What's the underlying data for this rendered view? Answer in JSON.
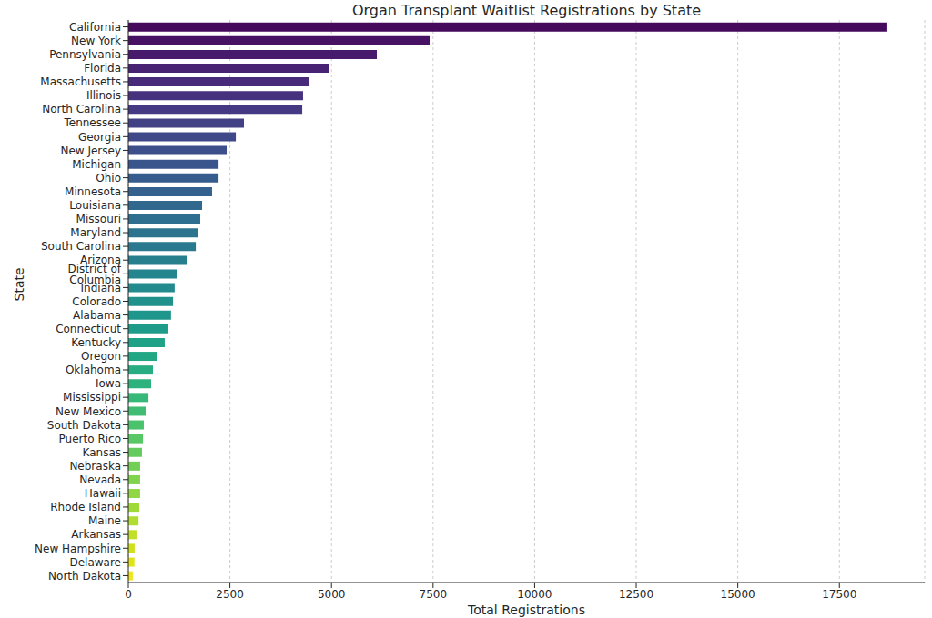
{
  "chart_data": {
    "type": "bar",
    "orientation": "horizontal",
    "title": "Organ Transplant Waitlist Registrations by State",
    "x_label": "Total Registrations",
    "y_label": "State",
    "categories": [
      "California",
      "New York",
      "Pennsylvania",
      "Florida",
      "Massachusetts",
      "Illinois",
      "North Carolina",
      "Tennessee",
      "Georgia",
      "New Jersey",
      "Michigan",
      "Ohio",
      "Minnesota",
      "Louisiana",
      "Missouri",
      "Maryland",
      "South Carolina",
      "Arizona",
      "District of Columbia",
      "Indiana",
      "Colorado",
      "Alabama",
      "Connecticut",
      "Kentucky",
      "Oregon",
      "Oklahoma",
      "Iowa",
      "Mississippi",
      "New Mexico",
      "South Dakota",
      "Puerto Rico",
      "Kansas",
      "Nebraska",
      "Nevada",
      "Hawaii",
      "Rhode Island",
      "Maine",
      "Arkansas",
      "New Hampshire",
      "Delaware",
      "North Dakota"
    ],
    "values": [
      18680,
      7415,
      6115,
      4950,
      4435,
      4300,
      4280,
      2845,
      2645,
      2420,
      2220,
      2220,
      2060,
      1815,
      1770,
      1725,
      1660,
      1435,
      1190,
      1140,
      1100,
      1050,
      985,
      895,
      695,
      605,
      560,
      495,
      425,
      380,
      360,
      335,
      290,
      290,
      290,
      270,
      250,
      200,
      155,
      150,
      110
    ],
    "colors": [
      "#450a5c",
      "#471264",
      "#471a6c",
      "#482273",
      "#472a79",
      "#46317e",
      "#443982",
      "#424185",
      "#3f4889",
      "#3c4f8a",
      "#3a558b",
      "#365c8d",
      "#34618d",
      "#31688e",
      "#2e6e8e",
      "#2c738e",
      "#2a798e",
      "#277f8e",
      "#25858e",
      "#238b8d",
      "#21918c",
      "#1f968b",
      "#1e9c89",
      "#20a287",
      "#22a785",
      "#27ad81",
      "#2db27d",
      "#36b878",
      "#40bd72",
      "#4bc26c",
      "#58c765",
      "#65cb5e",
      "#72cf56",
      "#80d34d",
      "#90d743",
      "#a0da39",
      "#b0dd2f",
      "#c0df25",
      "#d0e11c",
      "#e0e318",
      "#efe51c"
    ],
    "xlim": [
      0,
      19600
    ],
    "xticks": [
      0,
      2500,
      5000,
      7500,
      10000,
      12500,
      15000,
      17500
    ],
    "grid": true
  }
}
